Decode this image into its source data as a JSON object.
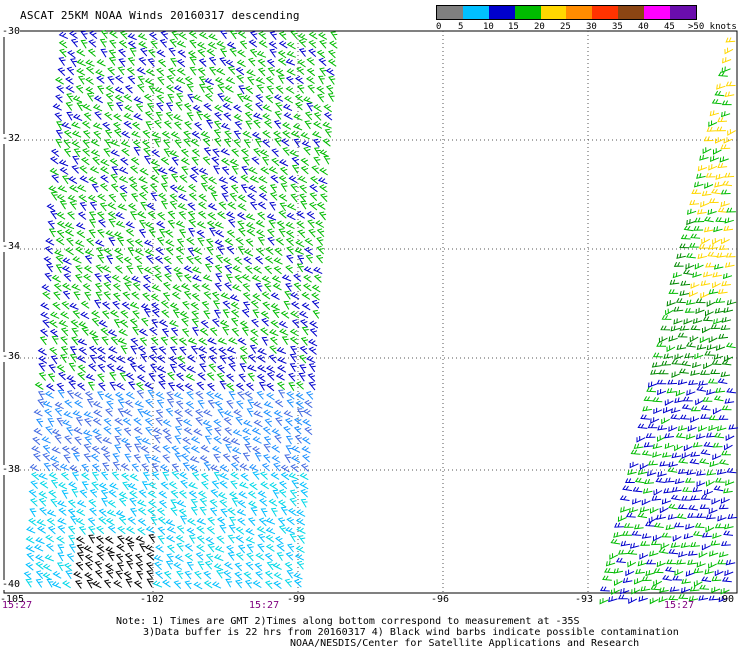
{
  "title": "ASCAT 25KM NOAA Winds 20160317 descending",
  "legend": {
    "colors": [
      "#7f7f7f",
      "#00bfff",
      "#0000cd",
      "#00bb00",
      "#ffd700",
      "#ff8c00",
      "#ff3300",
      "#8b4513",
      "#ff00ff",
      "#6a0dad"
    ],
    "labels": [
      "0",
      "5",
      "10",
      "15",
      "20",
      "25",
      "30",
      "35",
      "40",
      "45",
      ">50 knots"
    ]
  },
  "latitudes": [
    "-30",
    "-32",
    "-34",
    "-36",
    "-38",
    "-40"
  ],
  "longitudes": [
    "-105",
    "-102",
    "-99",
    "-96",
    "-93",
    "-90"
  ],
  "times": [
    "15:27",
    "15:27",
    "15:27"
  ],
  "notes": {
    "line1": "Note: 1) Times are GMT 2)Times along bottom correspond to measurement at -35S",
    "line2": "3)Data buffer is 22 hrs from 20160317 4) Black wind barbs indicate possible contamination",
    "line3": "NOAA/NESDIS/Center for Satellite Applications and Research"
  }
}
